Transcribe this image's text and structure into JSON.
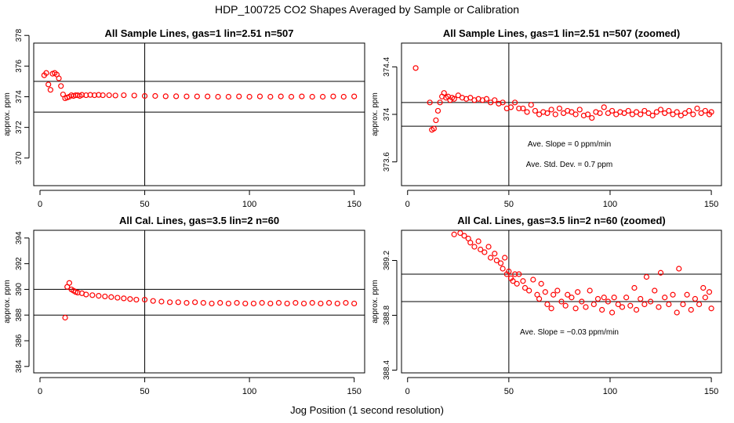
{
  "figure": {
    "title": "HDP_100725  CO2 Shapes Averaged by Sample or Calibration",
    "xlabel": "Jog Position (1 second resolution)"
  },
  "chart_data": [
    {
      "type": "scatter",
      "title": "All Sample Lines, gas=1 lin=2.51 n=507",
      "xlabel": "",
      "ylabel": "approx. ppm",
      "xlim": [
        -3,
        155
      ],
      "ylim": [
        368.2,
        377.5
      ],
      "xticks": [
        0,
        50,
        100,
        150
      ],
      "yticks": [
        370,
        372,
        374,
        376,
        378
      ],
      "hlines": [
        373,
        375
      ],
      "vlines": [
        50
      ],
      "annotations": [],
      "marker_color": "#ff0000",
      "points": [
        [
          2,
          375.4
        ],
        [
          3,
          375.55
        ],
        [
          4,
          374.8
        ],
        [
          5,
          374.45
        ],
        [
          6,
          375.5
        ],
        [
          7,
          375.55
        ],
        [
          8,
          375.45
        ],
        [
          9,
          375.2
        ],
        [
          10,
          374.7
        ],
        [
          11,
          374.15
        ],
        [
          12,
          373.9
        ],
        [
          13,
          373.95
        ],
        [
          14,
          374.0
        ],
        [
          15,
          374.1
        ],
        [
          16,
          374.05
        ],
        [
          17,
          374.1
        ],
        [
          18,
          374.1
        ],
        [
          19,
          374.05
        ],
        [
          20,
          374.12
        ],
        [
          22,
          374.1
        ],
        [
          24,
          374.12
        ],
        [
          26,
          374.1
        ],
        [
          28,
          374.12
        ],
        [
          30,
          374.1
        ],
        [
          33,
          374.1
        ],
        [
          36,
          374.08
        ],
        [
          40,
          374.1
        ],
        [
          45,
          374.08
        ],
        [
          50,
          374.05
        ],
        [
          55,
          374.05
        ],
        [
          60,
          374.03
        ],
        [
          65,
          374.03
        ],
        [
          70,
          374.02
        ],
        [
          75,
          374.02
        ],
        [
          80,
          374.02
        ],
        [
          85,
          374.0
        ],
        [
          90,
          374.0
        ],
        [
          95,
          374.02
        ],
        [
          100,
          374.0
        ],
        [
          105,
          374.02
        ],
        [
          110,
          374.0
        ],
        [
          115,
          374.02
        ],
        [
          120,
          374.0
        ],
        [
          125,
          374.02
        ],
        [
          130,
          374.0
        ],
        [
          135,
          374.0
        ],
        [
          140,
          374.02
        ],
        [
          145,
          374.0
        ],
        [
          150,
          374.02
        ]
      ]
    },
    {
      "type": "scatter",
      "title": "All Sample Lines, gas=1 lin=2.51 n=507 (zoomed)",
      "xlabel": "",
      "ylabel": "approx. ppm",
      "xlim": [
        -3,
        155
      ],
      "ylim": [
        373.4,
        374.6
      ],
      "xticks": [
        0,
        50,
        100,
        150
      ],
      "yticks": [
        373.6,
        374.0,
        374.4
      ],
      "hlines": [
        373.9,
        374.1
      ],
      "vlines": [
        50
      ],
      "annotations": [
        "Ave. Slope =  0  ppm/min",
        "Ave. Std. Dev. =  0.7  ppm"
      ],
      "marker_color": "#ff0000",
      "points": [
        [
          4,
          374.39
        ],
        [
          11,
          374.1
        ],
        [
          12,
          373.87
        ],
        [
          13,
          373.88
        ],
        [
          14,
          373.95
        ],
        [
          15,
          374.03
        ],
        [
          16,
          374.1
        ],
        [
          17,
          374.15
        ],
        [
          18,
          374.18
        ],
        [
          19,
          374.14
        ],
        [
          20,
          374.15
        ],
        [
          21,
          374.12
        ],
        [
          22,
          374.14
        ],
        [
          23,
          374.13
        ],
        [
          25,
          374.16
        ],
        [
          27,
          374.14
        ],
        [
          29,
          374.13
        ],
        [
          31,
          374.14
        ],
        [
          33,
          374.12
        ],
        [
          35,
          374.13
        ],
        [
          37,
          374.12
        ],
        [
          39,
          374.13
        ],
        [
          41,
          374.1
        ],
        [
          43,
          374.12
        ],
        [
          45,
          374.09
        ],
        [
          47,
          374.1
        ],
        [
          49,
          374.05
        ],
        [
          51,
          374.06
        ],
        [
          53,
          374.1
        ],
        [
          55,
          374.05
        ],
        [
          57,
          374.05
        ],
        [
          59,
          374.02
        ],
        [
          61,
          374.08
        ],
        [
          63,
          374.03
        ],
        [
          65,
          374.0
        ],
        [
          67,
          374.02
        ],
        [
          69,
          374.01
        ],
        [
          71,
          374.04
        ],
        [
          73,
          374.0
        ],
        [
          75,
          374.05
        ],
        [
          77,
          374.01
        ],
        [
          79,
          374.03
        ],
        [
          81,
          374.02
        ],
        [
          83,
          374.0
        ],
        [
          85,
          374.04
        ],
        [
          87,
          373.99
        ],
        [
          89,
          374.0
        ],
        [
          91,
          373.97
        ],
        [
          93,
          374.02
        ],
        [
          95,
          374.01
        ],
        [
          97,
          374.06
        ],
        [
          99,
          374.01
        ],
        [
          101,
          374.03
        ],
        [
          103,
          374.0
        ],
        [
          105,
          374.02
        ],
        [
          107,
          374.01
        ],
        [
          109,
          374.03
        ],
        [
          111,
          374.0
        ],
        [
          113,
          374.02
        ],
        [
          115,
          374.0
        ],
        [
          117,
          374.03
        ],
        [
          119,
          374.01
        ],
        [
          121,
          373.99
        ],
        [
          123,
          374.02
        ],
        [
          125,
          374.04
        ],
        [
          127,
          374.01
        ],
        [
          129,
          374.03
        ],
        [
          131,
          374.0
        ],
        [
          133,
          374.02
        ],
        [
          135,
          373.99
        ],
        [
          137,
          374.01
        ],
        [
          139,
          374.03
        ],
        [
          141,
          374.0
        ],
        [
          143,
          374.05
        ],
        [
          145,
          374.01
        ],
        [
          147,
          374.03
        ],
        [
          149,
          374.0
        ],
        [
          150,
          374.02
        ]
      ]
    },
    {
      "type": "scatter",
      "title": "All Cal. Lines, gas=3.5 lin=2 n=60",
      "xlabel": "",
      "ylabel": "approx. ppm",
      "xlim": [
        -3,
        155
      ],
      "ylim": [
        383.5,
        394.6
      ],
      "xticks": [
        0,
        50,
        100,
        150
      ],
      "yticks": [
        384,
        386,
        388,
        390,
        392,
        394
      ],
      "hlines": [
        388,
        390
      ],
      "vlines": [
        50
      ],
      "annotations": [],
      "marker_color": "#ff0000",
      "points": [
        [
          12,
          387.8
        ],
        [
          13,
          390.2
        ],
        [
          14,
          390.5
        ],
        [
          15,
          390.0
        ],
        [
          16,
          389.9
        ],
        [
          17,
          389.8
        ],
        [
          18,
          389.75
        ],
        [
          20,
          389.7
        ],
        [
          22,
          389.6
        ],
        [
          25,
          389.55
        ],
        [
          28,
          389.5
        ],
        [
          31,
          389.45
        ],
        [
          34,
          389.4
        ],
        [
          37,
          389.35
        ],
        [
          40,
          389.3
        ],
        [
          43,
          389.25
        ],
        [
          46,
          389.2
        ],
        [
          50,
          389.2
        ],
        [
          54,
          389.1
        ],
        [
          58,
          389.05
        ],
        [
          62,
          389.0
        ],
        [
          66,
          389.0
        ],
        [
          70,
          388.95
        ],
        [
          74,
          389.0
        ],
        [
          78,
          388.95
        ],
        [
          82,
          388.9
        ],
        [
          86,
          388.95
        ],
        [
          90,
          388.9
        ],
        [
          94,
          388.95
        ],
        [
          98,
          388.9
        ],
        [
          102,
          388.9
        ],
        [
          106,
          388.95
        ],
        [
          110,
          388.9
        ],
        [
          114,
          388.95
        ],
        [
          118,
          388.9
        ],
        [
          122,
          388.95
        ],
        [
          126,
          388.9
        ],
        [
          130,
          388.95
        ],
        [
          134,
          388.9
        ],
        [
          138,
          388.95
        ],
        [
          142,
          388.9
        ],
        [
          146,
          388.95
        ],
        [
          150,
          388.9
        ]
      ]
    },
    {
      "type": "scatter",
      "title": "All Cal. Lines, gas=3.5 lin=2 n=60 (zoomed)",
      "xlabel": "",
      "ylabel": "approx. ppm",
      "xlim": [
        -3,
        155
      ],
      "ylim": [
        388.38,
        389.42
      ],
      "xticks": [
        0,
        50,
        100,
        150
      ],
      "yticks": [
        388.4,
        388.8,
        389.2
      ],
      "hlines": [
        388.9,
        389.1
      ],
      "vlines": [
        50
      ],
      "annotations": [
        "Ave. Slope =  −0.03  ppm/min"
      ],
      "marker_color": "#ff0000",
      "points": [
        [
          23,
          389.39
        ],
        [
          26,
          389.4
        ],
        [
          28,
          389.38
        ],
        [
          30,
          389.36
        ],
        [
          31,
          389.33
        ],
        [
          33,
          389.3
        ],
        [
          35,
          389.34
        ],
        [
          36,
          389.28
        ],
        [
          38,
          389.26
        ],
        [
          40,
          389.3
        ],
        [
          41,
          389.22
        ],
        [
          43,
          389.25
        ],
        [
          44,
          389.2
        ],
        [
          46,
          389.18
        ],
        [
          47,
          389.14
        ],
        [
          48,
          389.22
        ],
        [
          49,
          389.1
        ],
        [
          50,
          389.12
        ],
        [
          51,
          389.07
        ],
        [
          52,
          389.05
        ],
        [
          53,
          389.1
        ],
        [
          54,
          389.03
        ],
        [
          55,
          389.1
        ],
        [
          57,
          389.05
        ],
        [
          58,
          389.0
        ],
        [
          60,
          388.98
        ],
        [
          62,
          389.06
        ],
        [
          64,
          388.95
        ],
        [
          65,
          388.92
        ],
        [
          66,
          389.03
        ],
        [
          68,
          388.97
        ],
        [
          69,
          388.88
        ],
        [
          71,
          388.85
        ],
        [
          72,
          388.95
        ],
        [
          74,
          388.98
        ],
        [
          76,
          388.9
        ],
        [
          78,
          388.87
        ],
        [
          79,
          388.95
        ],
        [
          81,
          388.93
        ],
        [
          83,
          388.85
        ],
        [
          84,
          388.97
        ],
        [
          86,
          388.9
        ],
        [
          88,
          388.86
        ],
        [
          90,
          388.98
        ],
        [
          92,
          388.88
        ],
        [
          94,
          388.92
        ],
        [
          96,
          388.84
        ],
        [
          97,
          388.93
        ],
        [
          99,
          388.9
        ],
        [
          101,
          388.82
        ],
        [
          102,
          388.93
        ],
        [
          104,
          388.88
        ],
        [
          106,
          388.86
        ],
        [
          108,
          388.93
        ],
        [
          110,
          388.87
        ],
        [
          112,
          389.0
        ],
        [
          113,
          388.84
        ],
        [
          115,
          388.92
        ],
        [
          117,
          388.88
        ],
        [
          118,
          389.08
        ],
        [
          120,
          388.9
        ],
        [
          122,
          388.98
        ],
        [
          124,
          388.86
        ],
        [
          125,
          389.11
        ],
        [
          127,
          388.93
        ],
        [
          129,
          388.88
        ],
        [
          131,
          388.95
        ],
        [
          133,
          388.82
        ],
        [
          134,
          389.14
        ],
        [
          136,
          388.88
        ],
        [
          138,
          388.95
        ],
        [
          140,
          388.84
        ],
        [
          142,
          388.92
        ],
        [
          144,
          388.88
        ],
        [
          146,
          389.0
        ],
        [
          147,
          388.93
        ],
        [
          149,
          388.97
        ],
        [
          150,
          388.85
        ]
      ]
    }
  ]
}
